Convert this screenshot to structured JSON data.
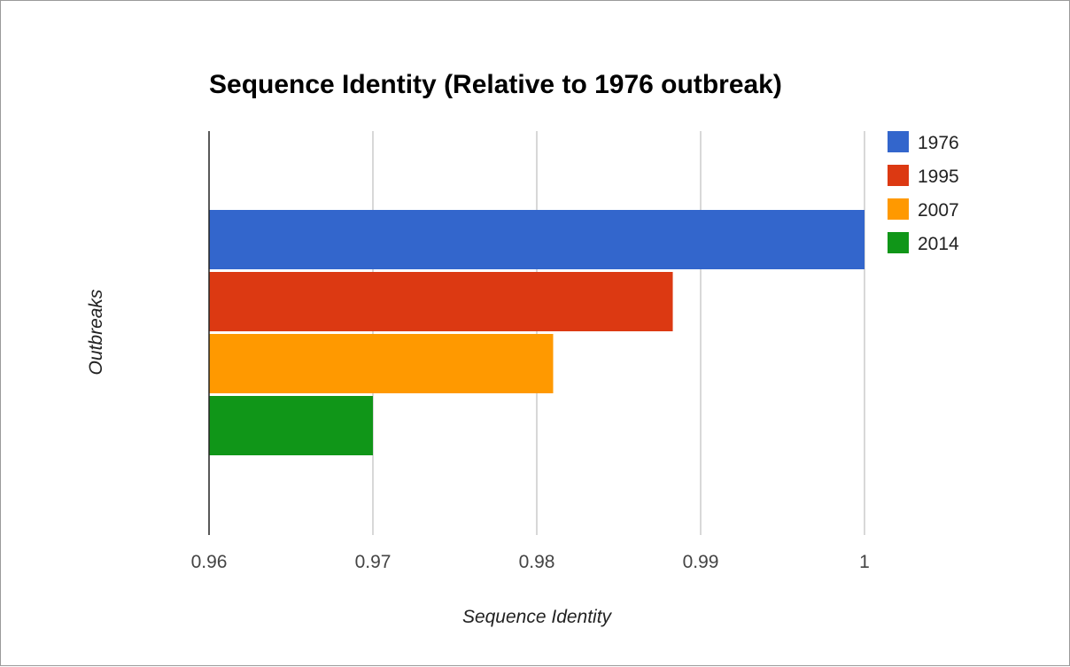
{
  "chart_data": {
    "type": "bar",
    "orientation": "horizontal",
    "title": "Sequence Identity (Relative to 1976 outbreak)",
    "xlabel": "Sequence Identity",
    "ylabel": "Outbreaks",
    "xlim": [
      0.96,
      1.0
    ],
    "x_ticks": [
      "0.96",
      "0.97",
      "0.98",
      "0.99",
      "1"
    ],
    "grid": true,
    "legend_position": "right",
    "series": [
      {
        "name": "1976",
        "value": 1.0,
        "color": "#3366cc"
      },
      {
        "name": "1995",
        "value": 0.9883,
        "color": "#dc3912"
      },
      {
        "name": "2007",
        "value": 0.981,
        "color": "#ff9900"
      },
      {
        "name": "2014",
        "value": 0.97,
        "color": "#109618"
      }
    ]
  }
}
